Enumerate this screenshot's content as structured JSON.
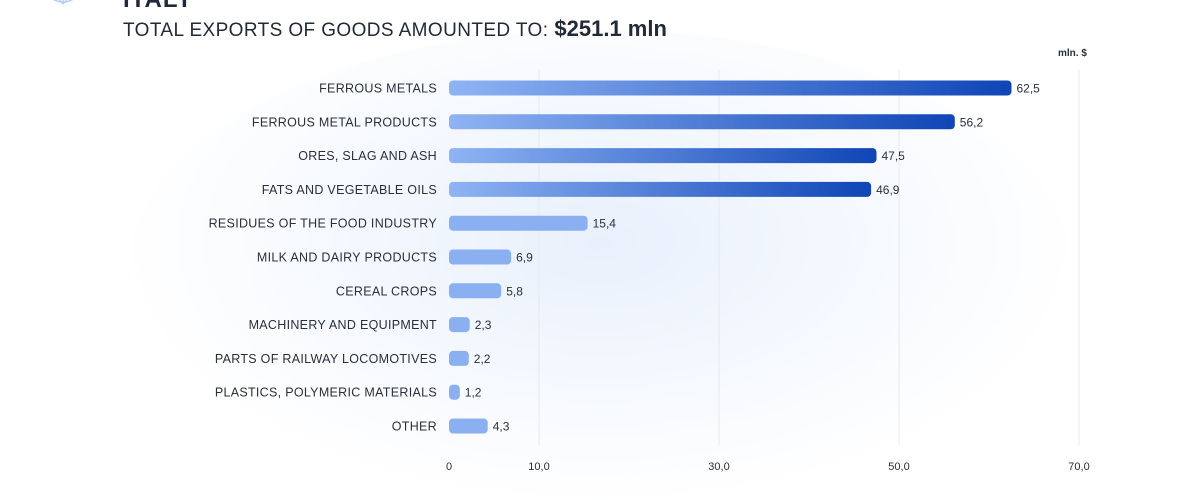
{
  "header": {
    "cut_title": "ITALY",
    "lead": "TOTAL EXPORTS OF GOODS AMOUNTED TO:",
    "total": "$251.1 mln",
    "unit": "mln. $"
  },
  "colors": {
    "bar_dark_start": "#8fb4f4",
    "bar_dark_end": "#0f45b6",
    "bar_light": "#8ab0f2",
    "grid": "#e6e9ef"
  },
  "chart_data": {
    "type": "bar",
    "orientation": "horizontal",
    "title": "TOTAL EXPORTS OF GOODS AMOUNTED TO: $251.1 mln",
    "xlabel": "mln. $",
    "ylabel": "",
    "xlim": [
      0,
      70
    ],
    "xticks": [
      0,
      10,
      30,
      50,
      70
    ],
    "xtick_labels": [
      "0",
      "10,0",
      "30,0",
      "50,0",
      "70,0"
    ],
    "grid": true,
    "categories": [
      "FERROUS METALS",
      "FERROUS METAL PRODUCTS",
      "ORES, SLAG AND ASH",
      "FATS AND VEGETABLE OILS",
      "RESIDUES OF THE FOOD INDUSTRY",
      "MILK AND DAIRY PRODUCTS",
      "CEREAL CROPS",
      "MACHINERY AND EQUIPMENT",
      "PARTS OF RAILWAY LOCOMOTIVES",
      "PLASTICS, POLYMERIC MATERIALS",
      "OTHER"
    ],
    "values": [
      62.5,
      56.2,
      47.5,
      46.9,
      15.4,
      6.9,
      5.8,
      2.3,
      2.2,
      1.2,
      4.3
    ],
    "value_labels": [
      "62,5",
      "56,2",
      "47,5",
      "46,9",
      "15,4",
      "6,9",
      "5,8",
      "2,3",
      "2,2",
      "1,2",
      "4,3"
    ]
  }
}
